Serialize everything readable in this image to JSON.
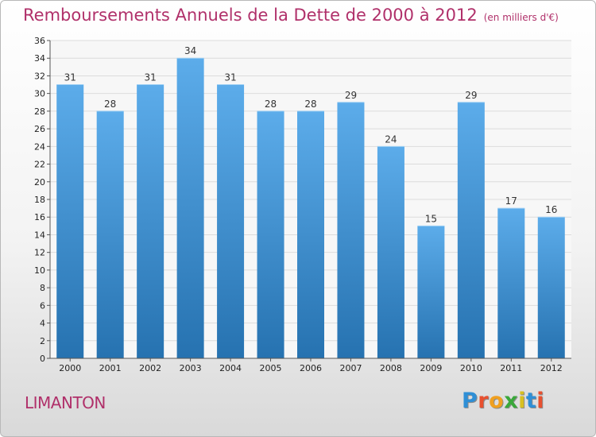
{
  "page": {
    "title": "Remboursements Annuels de la Dette de 2000 à 2012",
    "subtitle": "(en milliers d'€)",
    "commune": "LIMANTON",
    "logo": "Proxiti",
    "logo_colors": [
      "#2f8fd6",
      "#e8502f",
      "#f0a020",
      "#3aa83a",
      "#d8c020",
      "#2f8fd6",
      "#e8502f"
    ]
  },
  "colors": {
    "bar_dark": "#2a74b4",
    "bar_light": "#5aaae6",
    "title": "#b0306a",
    "grid": "#dcdcdc"
  },
  "chart_data": {
    "type": "bar",
    "title": "Remboursements Annuels de la Dette de 2000 à 2012",
    "subtitle": "(en milliers d'€)",
    "xlabel": "",
    "ylabel": "",
    "ylim": [
      0,
      36
    ],
    "ytick_step": 2,
    "grid": true,
    "categories": [
      "2000",
      "2001",
      "2002",
      "2003",
      "2004",
      "2005",
      "2006",
      "2007",
      "2008",
      "2009",
      "2010",
      "2011",
      "2012"
    ],
    "values": [
      31,
      28,
      31,
      34,
      31,
      28,
      28,
      29,
      24,
      15,
      29,
      17,
      16
    ]
  }
}
